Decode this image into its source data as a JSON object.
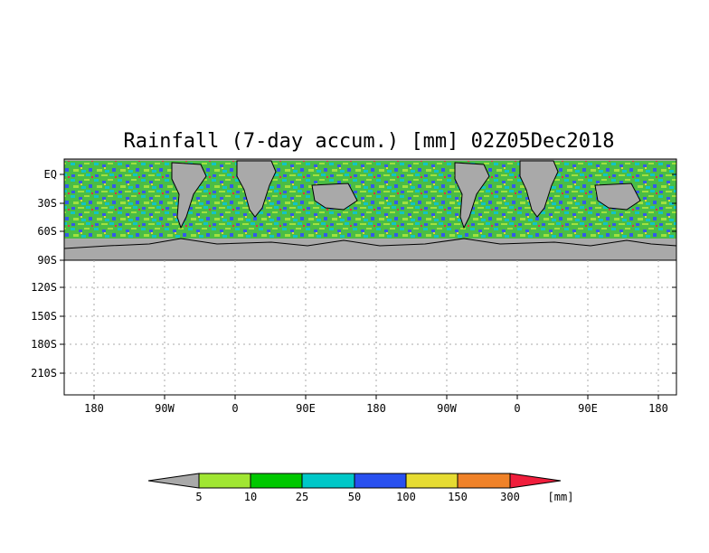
{
  "map": {
    "title": "Rainfall (7-day accum.) [mm] 02Z05Dec2018",
    "lat_labels": [
      "EQ",
      "30S",
      "60S",
      "90S",
      "120S",
      "150S",
      "180S",
      "210S"
    ],
    "lon_labels": [
      "180",
      "90W",
      "0",
      "90E",
      "180",
      "90W",
      "0",
      "90E",
      "180"
    ],
    "land_color": "#a9a9a9",
    "grid": true
  },
  "colorbar": {
    "levels": [
      "5",
      "10",
      "25",
      "50",
      "100",
      "150",
      "300"
    ],
    "units": "[mm]",
    "colors": [
      "#a9a9a9",
      "#a0e632",
      "#00c800",
      "#00c8c8",
      "#2850f0",
      "#e6dc32",
      "#f08228",
      "#f01e3c"
    ]
  }
}
